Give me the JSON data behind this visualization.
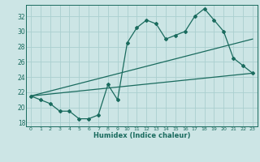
{
  "title": "",
  "xlabel": "Humidex (Indice chaleur)",
  "xlim": [
    -0.5,
    23.5
  ],
  "ylim": [
    17.5,
    33.5
  ],
  "yticks": [
    18,
    20,
    22,
    24,
    26,
    28,
    30,
    32
  ],
  "xticks": [
    0,
    1,
    2,
    3,
    4,
    5,
    6,
    7,
    8,
    9,
    10,
    11,
    12,
    13,
    14,
    15,
    16,
    17,
    18,
    19,
    20,
    21,
    22,
    23
  ],
  "bg_color": "#cce5e5",
  "grid_color": "#aacfcf",
  "line_color": "#1a6b5e",
  "line1_x": [
    0,
    1,
    2,
    3,
    4,
    5,
    6,
    7,
    8,
    9,
    10,
    11,
    12,
    13,
    14,
    15,
    16,
    17,
    18,
    19,
    20,
    21,
    22,
    23
  ],
  "line1_y": [
    21.5,
    21.0,
    20.5,
    19.5,
    19.5,
    18.5,
    18.5,
    19.0,
    23.0,
    21.0,
    28.5,
    30.5,
    31.5,
    31.0,
    29.0,
    29.5,
    30.0,
    32.0,
    33.0,
    31.5,
    30.0,
    26.5,
    25.5,
    24.5
  ],
  "line2_x": [
    0,
    23
  ],
  "line2_y": [
    21.5,
    29.0
  ],
  "line3_x": [
    0,
    23
  ],
  "line3_y": [
    21.5,
    24.5
  ]
}
